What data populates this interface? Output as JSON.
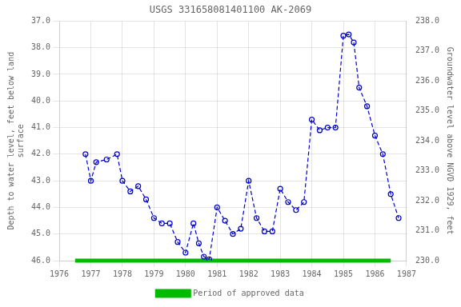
{
  "chart_data": {
    "type": "line",
    "title": "USGS 331658081401100 AK-2069",
    "y_label": "Depth to water level, feet below land\nsurface",
    "y2_label": "Groundwater level above NGVD 1929, feet",
    "xlim": [
      1976,
      1987
    ],
    "xticks": [
      1976,
      1977,
      1978,
      1979,
      1980,
      1981,
      1982,
      1983,
      1984,
      1985,
      1986,
      1987
    ],
    "ylim": [
      46.0,
      37.0
    ],
    "yticks": [
      {
        "value": 37.0,
        "label": "37.0"
      },
      {
        "value": 38.0,
        "label": "38.0"
      },
      {
        "value": 39.0,
        "label": "39.0"
      },
      {
        "value": 40.0,
        "label": "40.0"
      },
      {
        "value": 41.0,
        "label": "41.0"
      },
      {
        "value": 42.0,
        "label": "42.0"
      },
      {
        "value": 43.0,
        "label": "43.0"
      },
      {
        "value": 44.0,
        "label": "44.0"
      },
      {
        "value": 45.0,
        "label": "45.0"
      },
      {
        "value": 46.0,
        "label": "46.0"
      }
    ],
    "y2lim": [
      230.0,
      238.0
    ],
    "y2ticks": [
      {
        "value": 230.0,
        "label": "230.0"
      },
      {
        "value": 231.0,
        "label": "231.0"
      },
      {
        "value": 232.0,
        "label": "232.0"
      },
      {
        "value": 233.0,
        "label": "233.0"
      },
      {
        "value": 234.0,
        "label": "234.0"
      },
      {
        "value": 235.0,
        "label": "235.0"
      },
      {
        "value": 236.0,
        "label": "236.0"
      },
      {
        "value": 237.0,
        "label": "237.0"
      },
      {
        "value": 238.0,
        "label": "238.0"
      }
    ],
    "grid": true,
    "legend": "bottom",
    "series": [
      {
        "color": "#0000cc",
        "line_style": "dashed",
        "marker": "circle",
        "x": [
          1976.83,
          1977.0,
          1977.17,
          1977.5,
          1977.83,
          1978.0,
          1978.25,
          1978.5,
          1978.75,
          1979.0,
          1979.25,
          1979.5,
          1979.75,
          1980.0,
          1980.25,
          1980.42,
          1980.58,
          1980.75,
          1981.0,
          1981.25,
          1981.5,
          1981.75,
          1982.0,
          1982.25,
          1982.5,
          1982.75,
          1983.0,
          1983.25,
          1983.5,
          1983.75,
          1984.0,
          1984.25,
          1984.5,
          1984.75,
          1985.0,
          1985.17,
          1985.33,
          1985.5,
          1985.75,
          1986.0,
          1986.25,
          1986.5,
          1986.75
        ],
        "values": [
          42.0,
          43.0,
          42.3,
          42.2,
          42.0,
          43.0,
          43.4,
          43.2,
          43.7,
          44.4,
          44.6,
          44.6,
          45.3,
          45.7,
          44.6,
          45.35,
          45.85,
          45.95,
          44.0,
          44.5,
          45.0,
          44.8,
          43.0,
          44.4,
          44.9,
          44.9,
          43.3,
          43.8,
          44.1,
          43.8,
          40.7,
          41.1,
          41.0,
          41.0,
          37.55,
          37.5,
          37.8,
          39.5,
          40.2,
          41.3,
          42.0,
          43.5,
          44.4
        ]
      },
      {
        "name": "Period of approved data",
        "color": "#00bb00",
        "line_style": "solid",
        "marker": "none",
        "x": [
          1976.5,
          1986.5
        ],
        "values": [
          46.0,
          46.0
        ]
      }
    ]
  }
}
